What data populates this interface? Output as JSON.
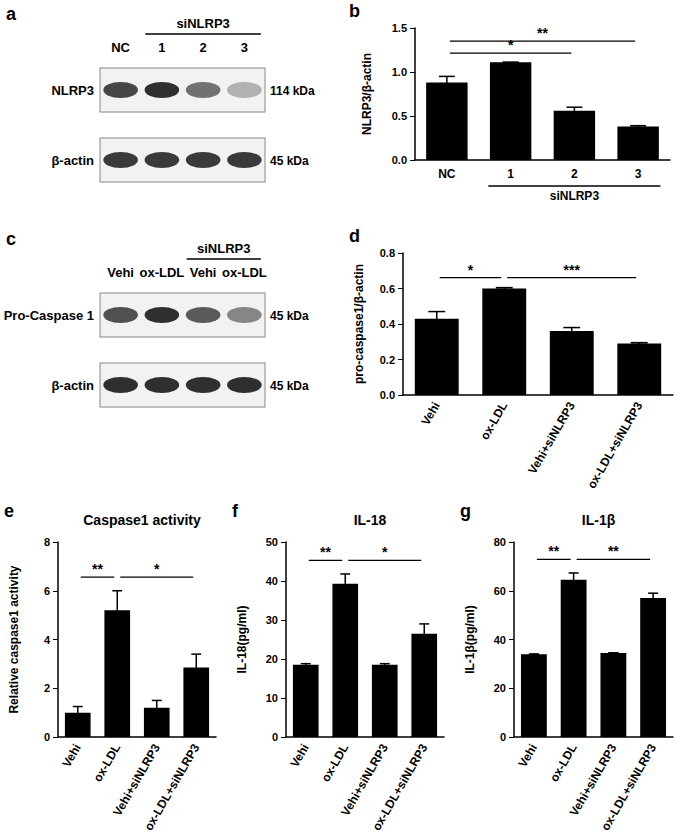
{
  "blots": [
    {
      "panel": "a",
      "lanes": [
        "NC",
        "1",
        "2",
        "3"
      ],
      "group": {
        "text": "siNLRP3",
        "from": 1,
        "to": 3
      },
      "rows": [
        {
          "label": "NLRP3",
          "size": "114 kDa",
          "intensity": [
            0.8,
            0.9,
            0.6,
            0.3
          ]
        },
        {
          "label": "β-actin",
          "size": "45 kDa",
          "intensity": [
            0.85,
            0.85,
            0.85,
            0.85
          ]
        }
      ]
    },
    {
      "panel": "c",
      "lanes": [
        "Vehi",
        "ox-LDL",
        "Vehi",
        "ox-LDL"
      ],
      "group": {
        "text": "siNLRP3",
        "from": 2,
        "to": 3
      },
      "rows": [
        {
          "label": "Pro-Caspase 1",
          "size": "45 kDa",
          "intensity": [
            0.75,
            0.9,
            0.7,
            0.5
          ]
        },
        {
          "label": "β-actin",
          "size": "45 kDa",
          "intensity": [
            0.9,
            0.9,
            0.9,
            0.9
          ]
        }
      ]
    }
  ],
  "chart_data": [
    {
      "panel": "b",
      "type": "bar",
      "y_label": "NLRP3/β-actin",
      "categories": [
        "NC",
        "1",
        "2",
        "3"
      ],
      "values": [
        0.88,
        1.11,
        0.56,
        0.38
      ],
      "errors": [
        0.07,
        0.0,
        0.04,
        0.01
      ],
      "color": "#000000",
      "grid": false,
      "ylim": [
        0,
        1.5
      ],
      "yticks": [
        {
          "value": 0,
          "label": "0.0"
        },
        0.5,
        {
          "value": 1,
          "label": "1.0"
        },
        1.5
      ],
      "group": {
        "text": "siNLRP3",
        "from": 1,
        "to": 3
      },
      "significance": [
        {
          "from": 0,
          "to": 2,
          "text": "*"
        },
        {
          "from": 0,
          "to": 3,
          "text": "**"
        }
      ]
    },
    {
      "panel": "d",
      "type": "bar",
      "y_label": "pro-caspase1/β-actin",
      "categories": [
        "Vehi",
        "ox-LDL",
        "Vehi+siNLRP3",
        "ox-LDL+siNLRP3"
      ],
      "values": [
        0.43,
        0.6,
        0.36,
        0.29
      ],
      "errors": [
        0.04,
        0.005,
        0.02,
        0.005
      ],
      "color": "#000000",
      "grid": false,
      "ylim": [
        0,
        0.8
      ],
      "yticks": [
        {
          "value": 0,
          "label": "0.0"
        },
        0.2,
        0.4,
        0.6,
        0.8
      ],
      "significance": [
        {
          "from": 0,
          "to": 1,
          "text": "*"
        },
        {
          "from": 1,
          "to": 3,
          "text": "***"
        }
      ]
    },
    {
      "panel": "e",
      "type": "bar",
      "title": "Caspase1 activity",
      "y_label": "Relative caspase1 activity",
      "categories": [
        "Vehi",
        "ox-LDL",
        "Vehi+siNLRP3",
        "ox-LDL+siNLRP3"
      ],
      "values": [
        1.0,
        5.2,
        1.2,
        2.85
      ],
      "errors": [
        0.25,
        0.8,
        0.3,
        0.55
      ],
      "color": "#000000",
      "grid": false,
      "ylim": [
        0,
        8
      ],
      "yticks": [
        0,
        2,
        4,
        6,
        8
      ],
      "significance": [
        {
          "from": 0,
          "to": 1,
          "text": "**"
        },
        {
          "from": 1,
          "to": 3,
          "text": "*"
        }
      ]
    },
    {
      "panel": "f",
      "type": "bar",
      "title": "IL-18",
      "y_label": "IL-18(pg/ml)",
      "categories": [
        "Vehi",
        "ox-LDL",
        "Vehi+siNLRP3",
        "ox-LDL+siNLRP3"
      ],
      "values": [
        18.5,
        39.3,
        18.5,
        26.5
      ],
      "errors": [
        0.3,
        2.5,
        0.3,
        2.5
      ],
      "color": "#000000",
      "grid": false,
      "ylim": [
        0,
        50
      ],
      "yticks": [
        0,
        10,
        20,
        30,
        40,
        50
      ],
      "significance": [
        {
          "from": 0,
          "to": 1,
          "text": "**"
        },
        {
          "from": 1,
          "to": 3,
          "text": "*"
        }
      ]
    },
    {
      "panel": "g",
      "type": "bar",
      "title": "IL-1β",
      "y_label": "IL-1β(pg/ml)",
      "categories": [
        "Vehi",
        "ox-LDL",
        "Vehi+siNLRP3",
        "ox-LDL+siNLRP3"
      ],
      "values": [
        34,
        64.5,
        34.5,
        57
      ],
      "errors": [
        0.0,
        2.8,
        0.0,
        2.0
      ],
      "color": "#000000",
      "grid": false,
      "ylim": [
        0,
        80
      ],
      "yticks": [
        0,
        20,
        40,
        60,
        80
      ],
      "significance": [
        {
          "from": 0,
          "to": 1,
          "text": "**"
        },
        {
          "from": 1,
          "to": 3,
          "text": "**"
        }
      ]
    }
  ]
}
